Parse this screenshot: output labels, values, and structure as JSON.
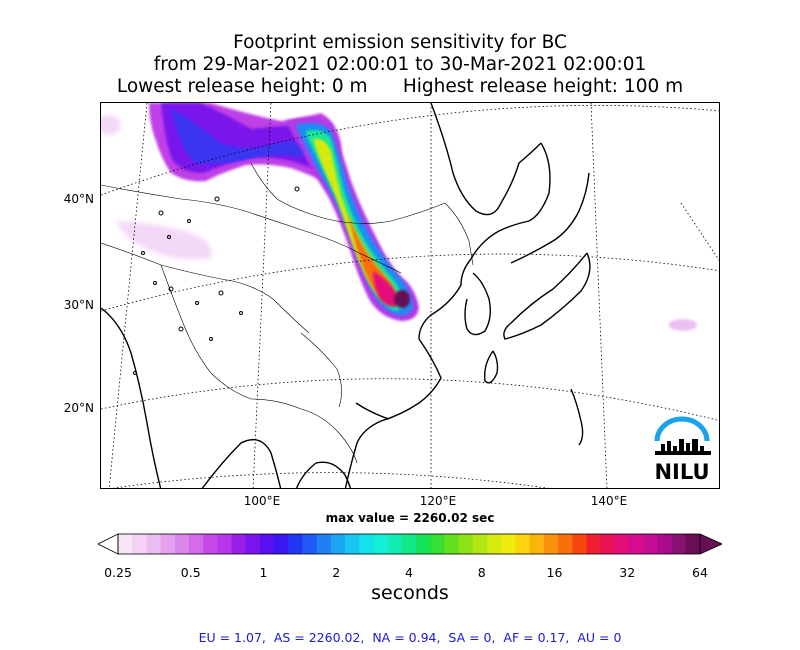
{
  "title": {
    "line1": "Footprint emission sensitivity for BC",
    "line2": "from 29-Mar-2021 02:00:01 to 30-Mar-2021 02:00:01",
    "line3": "Lowest release height: 0 m      Highest release height: 100 m"
  },
  "map": {
    "lat_labels": [
      "40°N",
      "30°N",
      "20°N"
    ],
    "lon_labels": [
      "100°E",
      "120°E",
      "140°E"
    ],
    "logo_text": "NILU",
    "logo_colors": {
      "arc": "#1aa3e8",
      "text": "#000000"
    }
  },
  "max_value": "max value = 2260.02 sec",
  "colorbar": {
    "tick_labels": [
      "0.25",
      "0.5",
      "1",
      "2",
      "4",
      "8",
      "16",
      "32",
      "64"
    ],
    "unit": "seconds",
    "colors": [
      "#f7e6f7",
      "#f2d4f2",
      "#ebbcf0",
      "#e3a3ec",
      "#db86ea",
      "#d36ce8",
      "#c74ae8",
      "#b835ea",
      "#9a1ee8",
      "#7a14ec",
      "#5a0ff0",
      "#3a18f4",
      "#2236f6",
      "#1e5af5",
      "#1f7ff4",
      "#1ba5f2",
      "#18c6ef",
      "#14e2ea",
      "#12f0d8",
      "#10ecb4",
      "#12e885",
      "#16e25a",
      "#35e02e",
      "#62e01e",
      "#8de216",
      "#b3e612",
      "#d6ea10",
      "#f0ec0e",
      "#fbd40c",
      "#fbb40b",
      "#fa920b",
      "#f8700c",
      "#f5460e",
      "#f01e30",
      "#ea1058",
      "#e40c7a",
      "#d60c8e",
      "#c40c94",
      "#a80c8c",
      "#881070",
      "#680e54"
    ]
  },
  "footer": "EU = 1.07,  AS = 2260.02,  NA = 0.94,  SA = 0,  AF = 0.17,  AU = 0"
}
